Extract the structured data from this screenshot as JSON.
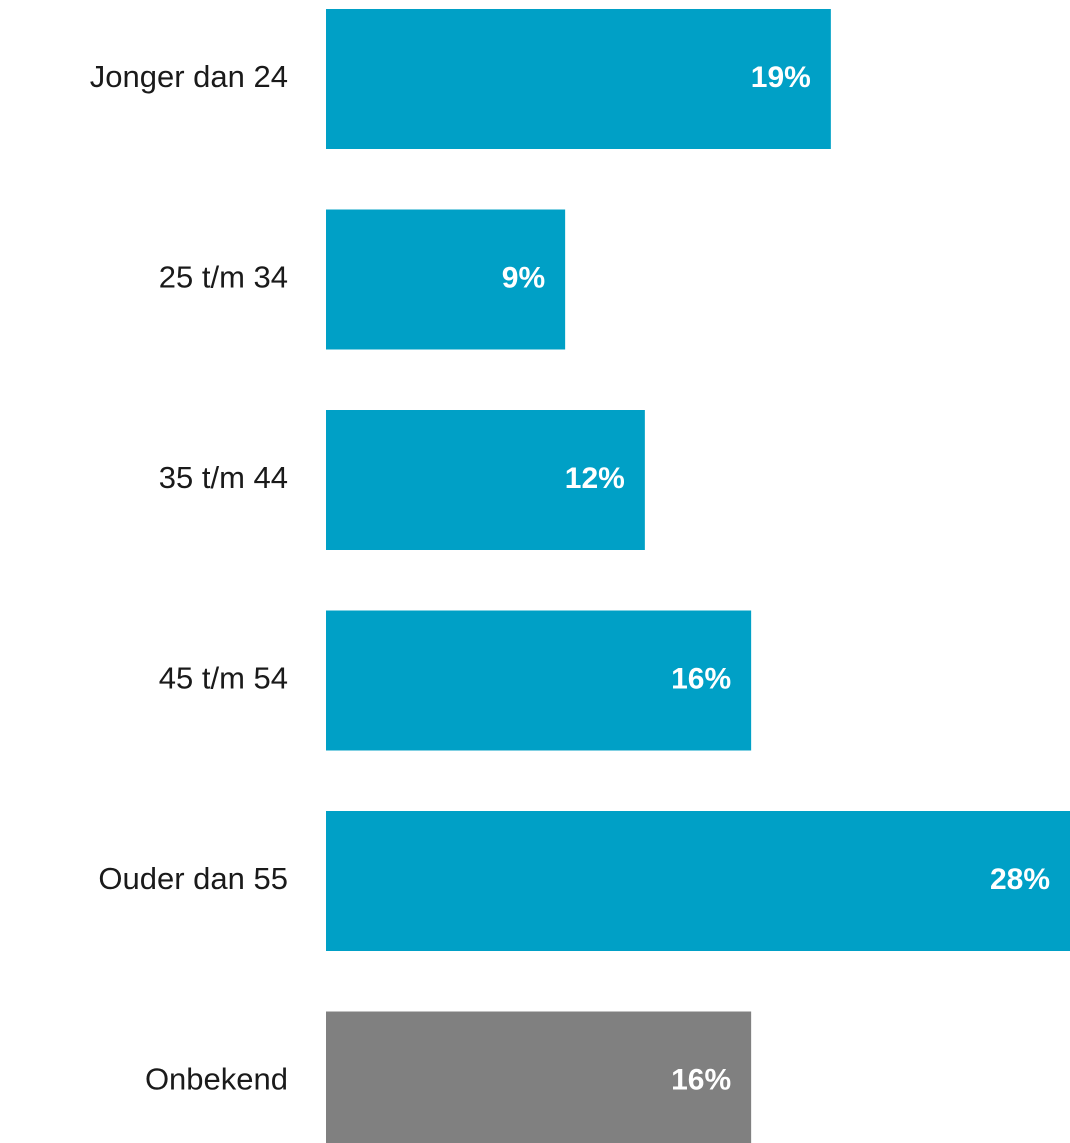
{
  "chart_data": {
    "type": "hbar",
    "categories": [
      "Jonger dan 24",
      "25 t/m 34",
      "35 t/m 44",
      "45 t/m 54",
      "Ouder dan 55",
      "Onbekend"
    ],
    "values": [
      19,
      9,
      12,
      16,
      28,
      16
    ],
    "value_labels": [
      "19%",
      "9%",
      "12%",
      "16%",
      "28%",
      "16%"
    ],
    "colors": [
      "#00a0c6",
      "#00a0c6",
      "#00a0c6",
      "#00a0c6",
      "#00a0c6",
      "#808080"
    ]
  }
}
